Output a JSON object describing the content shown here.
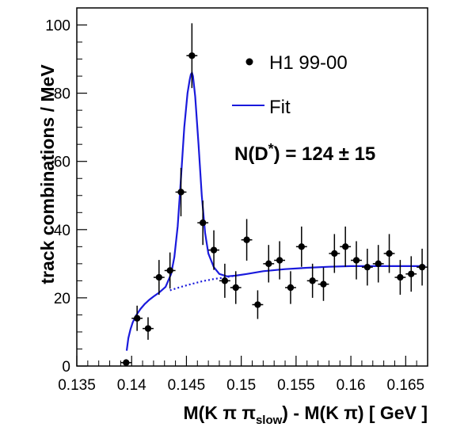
{
  "chart_data": {
    "type": "scatter",
    "title": "",
    "xlabel": {
      "main1": "M(K π π",
      "sub": "slow",
      "main2": ") - M(K π) [ GeV ]"
    },
    "ylabel": "track combinations / MeV",
    "xlim": [
      0.135,
      0.167
    ],
    "ylim": [
      0,
      105
    ],
    "x_ticks": [
      0.135,
      0.14,
      0.145,
      0.15,
      0.155,
      0.16,
      0.165
    ],
    "x_tick_labels": [
      "0.135",
      "0.14",
      "0.145",
      "0.15",
      "0.155",
      "0.16",
      "0.165"
    ],
    "y_ticks": [
      0,
      20,
      40,
      60,
      80,
      100
    ],
    "y_tick_labels": [
      "0",
      "20",
      "40",
      "60",
      "80",
      "100"
    ],
    "grid": false,
    "legend_position": "top-right",
    "series": [
      {
        "name": "H1 99-00",
        "kind": "points",
        "color": "#000000",
        "x": [
          0.1395,
          0.1405,
          0.1415,
          0.1425,
          0.1435,
          0.1445,
          0.1455,
          0.1465,
          0.1475,
          0.1485,
          0.1495,
          0.1505,
          0.1515,
          0.1525,
          0.1535,
          0.1545,
          0.1555,
          0.1565,
          0.1575,
          0.1585,
          0.1595,
          0.1605,
          0.1615,
          0.1625,
          0.1635,
          0.1645,
          0.1655,
          0.1665
        ],
        "y": [
          1,
          14,
          11,
          26,
          28,
          51,
          91,
          42,
          34,
          25,
          23,
          37,
          18,
          30,
          31,
          23,
          35,
          25,
          24,
          33,
          35,
          31,
          29,
          30,
          33,
          26,
          27,
          29
        ],
        "yerr": [
          1,
          3.7,
          3.3,
          5.1,
          5.3,
          7.1,
          9.5,
          6.5,
          5.8,
          5,
          4.8,
          6.1,
          4.2,
          5.5,
          5.6,
          4.8,
          5.9,
          5,
          4.9,
          5.7,
          5.9,
          5.6,
          5.4,
          5.5,
          5.7,
          5.1,
          5.2,
          5.4
        ]
      },
      {
        "name": "Fit",
        "kind": "line",
        "color": "#1a1adc",
        "x": [
          0.13955,
          0.1397,
          0.1399,
          0.1401,
          0.1404,
          0.1408,
          0.1412,
          0.1416,
          0.142,
          0.1425,
          0.1431,
          0.1436,
          0.1439,
          0.1442,
          0.1445,
          0.1448,
          0.1451,
          0.1453,
          0.1454,
          0.1455,
          0.1456,
          0.1458,
          0.1461,
          0.1464,
          0.1467,
          0.147,
          0.1475,
          0.148,
          0.1487,
          0.1495,
          0.1505,
          0.152,
          0.154,
          0.156,
          0.158,
          0.16,
          0.162,
          0.164,
          0.166,
          0.1668
        ],
        "y": [
          4.5,
          8.2,
          10.8,
          12.8,
          14.8,
          16.7,
          18.2,
          19.4,
          20.4,
          21.5,
          23.2,
          27,
          32,
          41,
          55,
          70,
          80,
          84,
          85.5,
          86,
          85,
          79,
          65,
          50,
          39,
          33,
          29,
          27,
          26.3,
          26.5,
          27,
          27.8,
          28.4,
          28.8,
          29.1,
          29.3,
          29.3,
          29.3,
          29.3,
          29.3
        ]
      },
      {
        "name": "",
        "kind": "dotted-line",
        "color": "#1a1adc",
        "x": [
          0.1435,
          0.1445,
          0.1455,
          0.1465,
          0.1475,
          0.1485,
          0.1495
        ],
        "y": [
          22.2,
          23.2,
          24.1,
          24.9,
          25.5,
          26.0,
          26.5
        ]
      }
    ],
    "annotation": {
      "text_main": "N(D",
      "text_sup": "*",
      "text_rest": ") = 124 ± 15"
    }
  }
}
